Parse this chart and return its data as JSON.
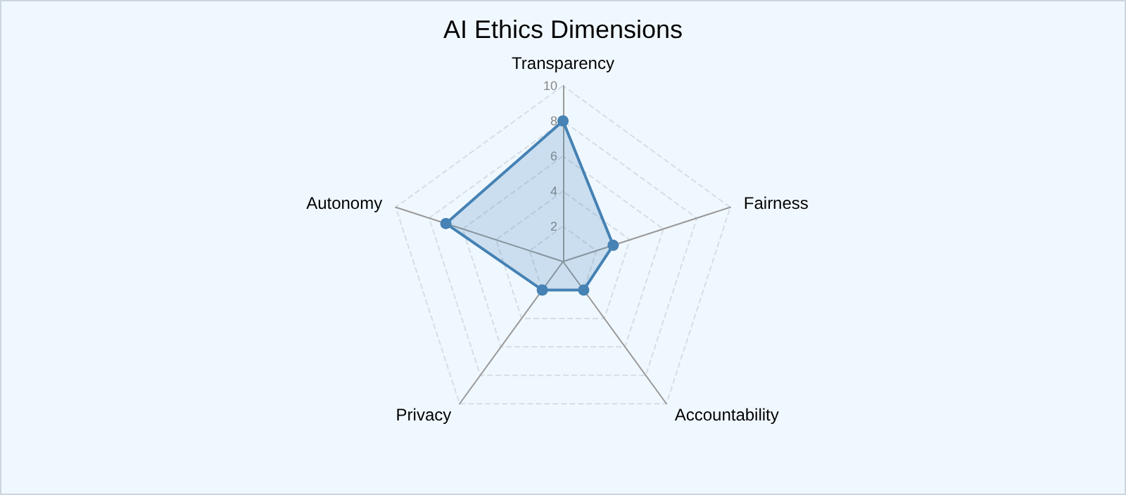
{
  "chart_data": {
    "type": "radar",
    "title": "AI Ethics Dimensions",
    "categories": [
      "Transparency",
      "Fairness",
      "Accountability",
      "Privacy",
      "Autonomy"
    ],
    "series": [
      {
        "color": "#4682b4",
        "values": [
          8,
          3,
          2,
          2,
          7
        ]
      }
    ],
    "ylim": [
      0,
      10
    ],
    "yticks": [
      2,
      4,
      6,
      8,
      10
    ],
    "marker": "circle",
    "grid": true
  }
}
